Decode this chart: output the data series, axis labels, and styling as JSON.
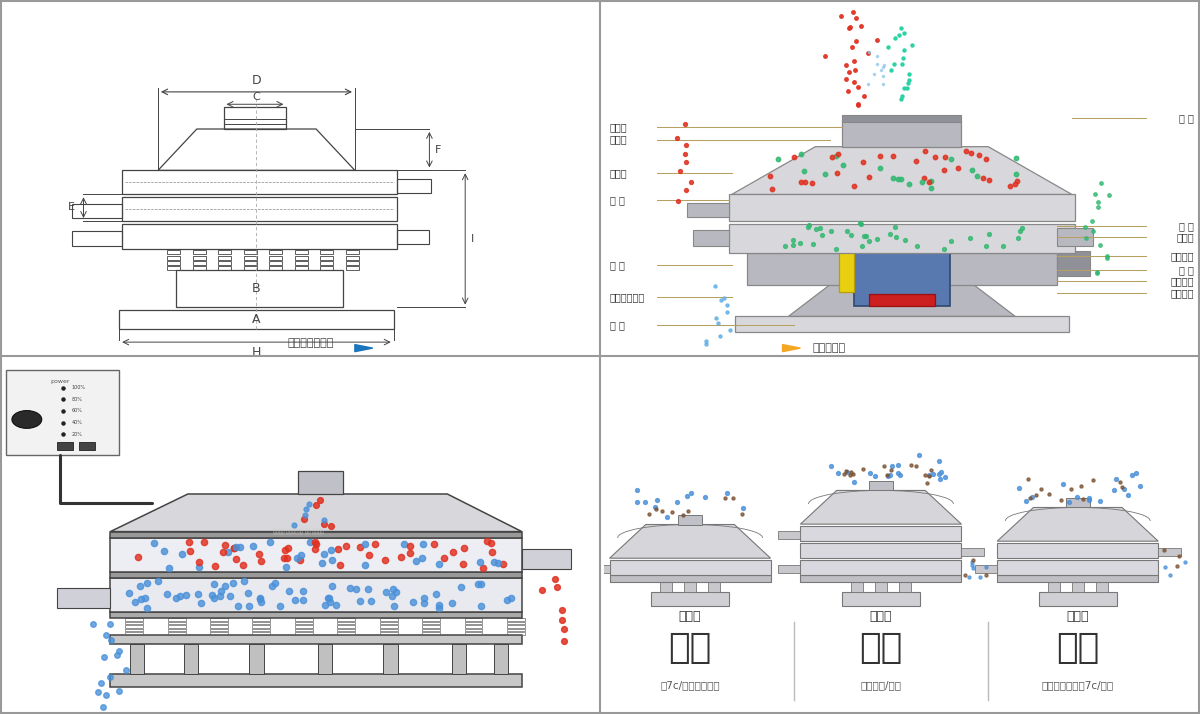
{
  "bg_color": "#ffffff",
  "border_color": "#bbbbbb",
  "top_left": {
    "dim_letters": [
      "D",
      "C",
      "F",
      "E",
      "I",
      "B",
      "A",
      "H"
    ],
    "title": "外形尺寸示意图"
  },
  "top_right": {
    "title": "结构示意图",
    "left_labels": [
      "进料口",
      "防尘盖",
      "出料口",
      "束 环",
      "弹 簧",
      "运输固定螺栓",
      "机 座"
    ],
    "right_labels": [
      "筛 网",
      "网 架",
      "加重块",
      "上部重锤",
      "筛 盘",
      "振动电机",
      "下部重锤"
    ]
  },
  "bottom_right": {
    "sections": [
      {
        "label": "单层式",
        "big": "分级",
        "small": "顐7c/粉末准确分级"
      },
      {
        "label": "三层式",
        "big": "过滤",
        "small": "去除异物/结块"
      },
      {
        "label": "双层式",
        "big": "除杂",
        "small": "去除液体中的顐7c/异物"
      }
    ]
  },
  "colors": {
    "red": "#e03020",
    "blue": "#4a90d9",
    "green": "#30b870",
    "brown": "#7a5030",
    "machine_light": "#d8d8dc",
    "machine_mid": "#b8b8c0",
    "machine_dark": "#909098",
    "line": "#444444",
    "dim_line": "#555555",
    "label_line": "#b8a060",
    "arrow_blue": "#1a75bc",
    "arrow_orange": "#f5a623"
  }
}
